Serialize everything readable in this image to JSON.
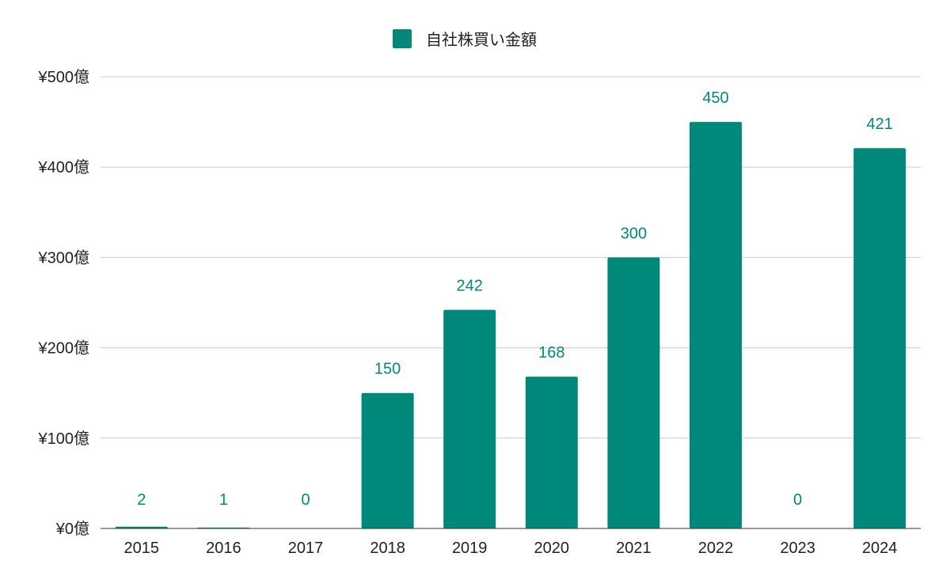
{
  "chart_data": {
    "type": "bar",
    "title": "",
    "xlabel": "",
    "ylabel": "",
    "categories": [
      "2015",
      "2016",
      "2017",
      "2018",
      "2019",
      "2020",
      "2021",
      "2022",
      "2023",
      "2024"
    ],
    "series": [
      {
        "name": "自社株買い金額",
        "color": "#00897b",
        "values": [
          2,
          1,
          0,
          150,
          242,
          168,
          300,
          450,
          0,
          421
        ],
        "data_labels": [
          "2",
          "1",
          "0",
          "150",
          "242",
          "168",
          "300",
          "450",
          "0",
          "421"
        ]
      }
    ],
    "ylim": [
      0,
      500
    ],
    "yticks": [
      0,
      100,
      200,
      300,
      400,
      500
    ],
    "ytick_labels": [
      "¥0億",
      "¥100億",
      "¥200億",
      "¥300億",
      "¥400億",
      "¥500億"
    ],
    "grid": true,
    "legend": {
      "position": "top-center",
      "entries": [
        "自社株買い金額"
      ]
    }
  }
}
